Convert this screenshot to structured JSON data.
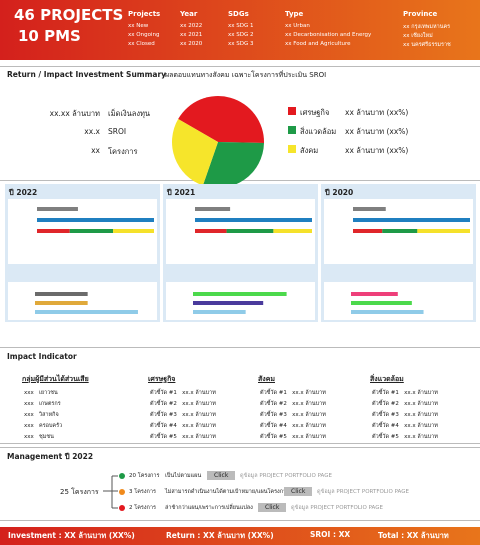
{
  "header": {
    "projects_count": "46 PROJECTS",
    "pms_count": "10 PMS",
    "columns": [
      {
        "title": "Projects",
        "items": [
          "xx New",
          "xx Ongoing",
          "xx Closed"
        ]
      },
      {
        "title": "Year",
        "items": [
          "xx 2022",
          "xx 2021",
          "xx 2020"
        ]
      },
      {
        "title": "SDGs",
        "items": [
          "xx SDG 1",
          "xx SDG 2",
          "xx SDG 3"
        ]
      },
      {
        "title": "Type",
        "items": [
          "xx Urban",
          "xx Decarbonisation and Energy",
          "xx Food and Agriculture"
        ]
      },
      {
        "title": "Province",
        "items": [
          "xx กรุงเทพมหานคร",
          "xx เชียงใหม่",
          "xx นครศรีธรรมราช"
        ]
      }
    ]
  },
  "summary": {
    "title": "Return / Impact Investment Summary",
    "subtitle": "ผลตอบแทนทางสังคม เฉพาะโครงการที่ประเมิน SROI",
    "stats": [
      {
        "value": "xx.xx ล้านบาท",
        "label": "เม็ดเงินลงทุน"
      },
      {
        "value": "xx.x",
        "label": "SROI"
      },
      {
        "value": "xx",
        "label": "โครงการ"
      }
    ],
    "pie": {
      "type": "pie",
      "categories": [
        "เศรษฐกิจ",
        "สิ่งแวดล้อม",
        "สังคม"
      ],
      "values": [
        42,
        30,
        28
      ],
      "colors": [
        "#e3191f",
        "#1e9a47",
        "#f6e52b"
      ],
      "value_labels": [
        "xx ล้านบาท (xx%)",
        "xx ล้านบาท (xx%)",
        "xx ล้านบาท (xx%)"
      ]
    }
  },
  "years": [
    {
      "title": "ปี 2022",
      "bars": [
        {
          "color": "#7f7f7f",
          "value": 35
        },
        {
          "color": "#1f7fc0",
          "value": 100
        }
      ],
      "stack": [
        28,
        37,
        35
      ],
      "bars2": [
        {
          "color": "#6b6b6b",
          "value": 45
        },
        {
          "color": "#e0a93a",
          "value": 45
        },
        {
          "color": "#8fcbe8",
          "value": 88
        }
      ]
    },
    {
      "title": "ปี 2021",
      "bars": [
        {
          "color": "#7f7f7f",
          "value": 30
        },
        {
          "color": "#1f7fc0",
          "value": 100
        }
      ],
      "stack": [
        27,
        40,
        33
      ],
      "bars2": [
        {
          "color": "#4cd94c",
          "value": 80
        },
        {
          "color": "#4a3a9c",
          "value": 60
        },
        {
          "color": "#8fcbe8",
          "value": 45
        }
      ]
    },
    {
      "title": "ปี 2020",
      "bars": [
        {
          "color": "#7f7f7f",
          "value": 28
        },
        {
          "color": "#1f7fc0",
          "value": 100
        }
      ],
      "stack": [
        25,
        30,
        45
      ],
      "bars2": [
        {
          "color": "#ee3f7a",
          "value": 40
        },
        {
          "color": "#4cd94c",
          "value": 52
        },
        {
          "color": "#8fcbe8",
          "value": 62
        }
      ]
    }
  ],
  "stack_colors": [
    "#e0262a",
    "#1e9a47",
    "#f5e12a"
  ],
  "impact": {
    "title": "Impact Indicator",
    "columns": [
      {
        "title": "กลุ่มผู้มีส่วนได้ส่วนเสีย",
        "rows": [
          "xxx   เยาวชน",
          "xxx   เกษตรกร",
          "xxx   วิสาหกิจ",
          "xxx   ครอบครัว",
          "xxx   ชุมชน"
        ]
      },
      {
        "title": "เศรษฐกิจ",
        "rows": [
          "ตัวชี้วัด #1   xx.x ล้านบาท",
          "ตัวชี้วัด #2   xx.x ล้านบาท",
          "ตัวชี้วัด #3   xx.x ล้านบาท",
          "ตัวชี้วัด #4   xx.x ล้านบาท",
          "ตัวชี้วัด #5   xx.x ล้านบาท"
        ]
      },
      {
        "title": "สังคม",
        "rows": [
          "ตัวชี้วัด #1   xx.x ล้านบาท",
          "ตัวชี้วัด #2   xx.x ล้านบาท",
          "ตัวชี้วัด #3   xx.x ล้านบาท",
          "ตัวชี้วัด #4   xx.x ล้านบาท",
          "ตัวชี้วัด #5   xx.x ล้านบาท"
        ]
      },
      {
        "title": "สิ่งแวดล้อม",
        "rows": [
          "ตัวชี้วัด #1   xx.x ล้านบาท",
          "ตัวชี้วัด #2   xx.x ล้านบาท",
          "ตัวชี้วัด #3   xx.x ล้านบาท",
          "ตัวชี้วัด #4   xx.x ล้านบาท",
          "ตัวชี้วัด #5   xx.x ล้านบาท"
        ]
      }
    ]
  },
  "management": {
    "title": "Management ปี 2022",
    "total": "25 โครงการ",
    "rows": [
      {
        "color": "#1e9a47",
        "count": "20 โครงการ",
        "status": "เป็นไปตามแผน",
        "button": "Click",
        "link": "ดูข้อมูล PROJECT PORTFOLIO PAGE"
      },
      {
        "color": "#f08a1c",
        "count": "3 โครงการ",
        "status": "ไม่สามารถดำเนินงานได้ตามเป้าหมาย/แผนโครงการ",
        "button": "Click",
        "link": "ดูข้อมูล PROJECT PORTFOLIO PAGE"
      },
      {
        "color": "#e3191f",
        "count": "2 โครงการ",
        "status": "ล่าช้ากว่าแผน/เพราะการเปลี่ยนแปลง",
        "button": "Click",
        "link": "ดูข้อมูล PROJECT PORTFOLIO PAGE"
      }
    ]
  },
  "footer": [
    "Investment : XX ล้านบาท (XX%)",
    "Return : XX ล้านบาท (XX%)",
    "SROI : XX",
    "Total : XX ล้านบาท"
  ]
}
